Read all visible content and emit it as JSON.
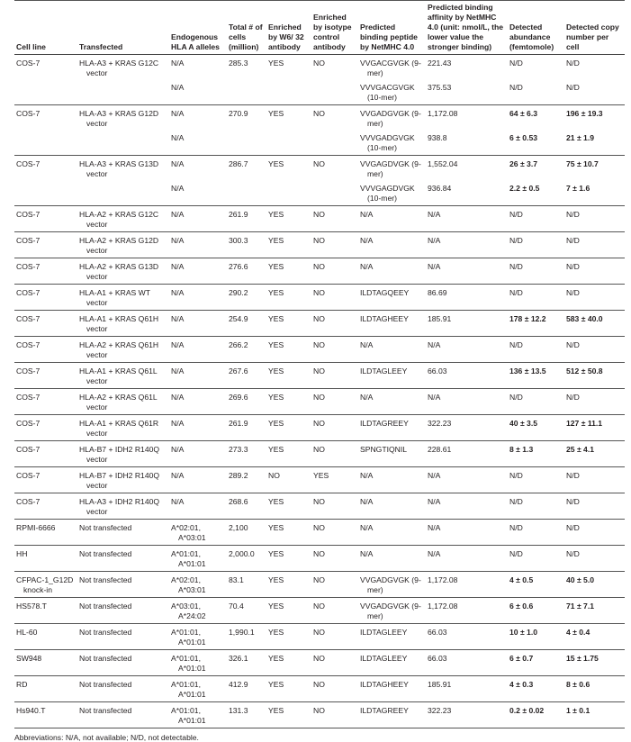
{
  "headers": [
    "Cell line",
    "Transfected",
    "Endogenous HLA A alleles",
    "Total # of cells (million)",
    "Enriched by W6/ 32 antibody",
    "Enriched by isotype control antibody",
    "Predicted binding peptide by NetMHC 4.0",
    "Predicted binding affinity by NetMHC 4.0 (unit: nmol/L, the lower value the stronger binding)",
    "Detected abundance (femtomole)",
    "Detected copy number per cell"
  ],
  "rows": [
    {
      "cell": "COS-7",
      "transfected": "HLA-A3 + KRAS G12C vector",
      "total": "285.3",
      "w6": "YES",
      "iso": "NO",
      "subs": [
        {
          "hla": "N/A",
          "peptide": "VVGACGVGK (9-mer)",
          "affinity": "221.43",
          "abundance": "N/D",
          "copy": "N/D"
        },
        {
          "hla": "N/A",
          "peptide": "VVVGACGVGK (10-mer)",
          "affinity": "375.53",
          "abundance": "N/D",
          "copy": "N/D"
        }
      ]
    },
    {
      "cell": "COS-7",
      "transfected": "HLA-A3 + KRAS G12D vector",
      "total": "270.9",
      "w6": "YES",
      "iso": "NO",
      "subs": [
        {
          "hla": "N/A",
          "peptide": "VVGADGVGK (9-mer)",
          "affinity": "1,172.08",
          "abundance": "64 ± 6.3",
          "copy": "196 ± 19.3"
        },
        {
          "hla": "N/A",
          "peptide": "VVVGADGVGK (10-mer)",
          "affinity": "938.8",
          "abundance": "6 ± 0.53",
          "copy": "21 ± 1.9"
        }
      ]
    },
    {
      "cell": "COS-7",
      "transfected": "HLA-A3 + KRAS G13D vector",
      "total": "286.7",
      "w6": "YES",
      "iso": "NO",
      "subs": [
        {
          "hla": "N/A",
          "peptide": "VVGAGDVGK (9-mer)",
          "affinity": "1,552.04",
          "abundance": "26 ± 3.7",
          "copy": "75 ± 10.7"
        },
        {
          "hla": "N/A",
          "peptide": "VVVGAGDVGK (10-mer)",
          "affinity": "936.84",
          "abundance": "2.2 ± 0.5",
          "copy": "7 ± 1.6"
        }
      ]
    },
    {
      "cell": "COS-7",
      "transfected": "HLA-A2 + KRAS G12C vector",
      "total": "261.9",
      "w6": "YES",
      "iso": "NO",
      "subs": [
        {
          "hla": "N/A",
          "peptide": "N/A",
          "affinity": "N/A",
          "abundance": "N/D",
          "copy": "N/D"
        }
      ]
    },
    {
      "cell": "COS-7",
      "transfected": "HLA-A2 + KRAS G12D vector",
      "total": "300.3",
      "w6": "YES",
      "iso": "NO",
      "subs": [
        {
          "hla": "N/A",
          "peptide": "N/A",
          "affinity": "N/A",
          "abundance": "N/D",
          "copy": "N/D"
        }
      ]
    },
    {
      "cell": "COS-7",
      "transfected": "HLA-A2 + KRAS G13D vector",
      "total": "276.6",
      "w6": "YES",
      "iso": "NO",
      "subs": [
        {
          "hla": "N/A",
          "peptide": "N/A",
          "affinity": "N/A",
          "abundance": "N/D",
          "copy": "N/D"
        }
      ]
    },
    {
      "cell": "COS-7",
      "transfected": "HLA-A1 + KRAS WT vector",
      "total": "290.2",
      "w6": "YES",
      "iso": "NO",
      "subs": [
        {
          "hla": "N/A",
          "peptide": "ILDTAGQEEY",
          "affinity": "86.69",
          "abundance": "N/D",
          "copy": "N/D"
        }
      ]
    },
    {
      "cell": "COS-7",
      "transfected": "HLA-A1 + KRAS Q61H vector",
      "total": "254.9",
      "w6": "YES",
      "iso": "NO",
      "subs": [
        {
          "hla": "N/A",
          "peptide": "ILDTAGHEEY",
          "affinity": "185.91",
          "abundance": "178 ± 12.2",
          "copy": "583 ± 40.0"
        }
      ]
    },
    {
      "cell": "COS-7",
      "transfected": "HLA-A2 + KRAS Q61H vector",
      "total": "266.2",
      "w6": "YES",
      "iso": "NO",
      "subs": [
        {
          "hla": "N/A",
          "peptide": "N/A",
          "affinity": "N/A",
          "abundance": "N/D",
          "copy": "N/D"
        }
      ]
    },
    {
      "cell": "COS-7",
      "transfected": "HLA-A1 + KRAS Q61L vector",
      "total": "267.6",
      "w6": "YES",
      "iso": "NO",
      "subs": [
        {
          "hla": "N/A",
          "peptide": "ILDTAGLEEY",
          "affinity": "66.03",
          "abundance": "136 ± 13.5",
          "copy": "512 ± 50.8"
        }
      ]
    },
    {
      "cell": "COS-7",
      "transfected": "HLA-A2 + KRAS Q61L vector",
      "total": "269.6",
      "w6": "YES",
      "iso": "NO",
      "subs": [
        {
          "hla": "N/A",
          "peptide": "N/A",
          "affinity": "N/A",
          "abundance": "N/D",
          "copy": "N/D"
        }
      ]
    },
    {
      "cell": "COS-7",
      "transfected": "HLA-A1 + KRAS Q61R vector",
      "total": "261.9",
      "w6": "YES",
      "iso": "NO",
      "subs": [
        {
          "hla": "N/A",
          "peptide": "ILDTAGREEY",
          "affinity": "322.23",
          "abundance": "40 ± 3.5",
          "copy": "127 ± 11.1"
        }
      ]
    },
    {
      "cell": "COS-7",
      "transfected": "HLA-B7 + IDH2 R140Q vector",
      "total": "273.3",
      "w6": "YES",
      "iso": "NO",
      "subs": [
        {
          "hla": "N/A",
          "peptide": "SPNGTIQNIL",
          "affinity": "228.61",
          "abundance": "8 ± 1.3",
          "copy": "25 ± 4.1"
        }
      ]
    },
    {
      "cell": "COS-7",
      "transfected": "HLA-B7 + IDH2 R140Q vector",
      "total": "289.2",
      "w6": "NO",
      "iso": "YES",
      "subs": [
        {
          "hla": "N/A",
          "peptide": "N/A",
          "affinity": "N/A",
          "abundance": "N/D",
          "copy": "N/D"
        }
      ]
    },
    {
      "cell": "COS-7",
      "transfected": "HLA-A3 + IDH2 R140Q vector",
      "total": "268.6",
      "w6": "YES",
      "iso": "NO",
      "subs": [
        {
          "hla": "N/A",
          "peptide": "N/A",
          "affinity": "N/A",
          "abundance": "N/D",
          "copy": "N/D"
        }
      ]
    },
    {
      "cell": "RPMI-6666",
      "transfected": "Not transfected",
      "total": "2,100",
      "w6": "YES",
      "iso": "NO",
      "subs": [
        {
          "hla": "A*02:01, A*03:01",
          "peptide": "N/A",
          "affinity": "N/A",
          "abundance": "N/D",
          "copy": "N/D"
        }
      ]
    },
    {
      "cell": "HH",
      "transfected": "Not transfected",
      "total": "2,000.0",
      "w6": "YES",
      "iso": "NO",
      "subs": [
        {
          "hla": "A*01:01, A*01:01",
          "peptide": "N/A",
          "affinity": "N/A",
          "abundance": "N/D",
          "copy": "N/D"
        }
      ]
    },
    {
      "cell": "CFPAC-1_G12D knock-in",
      "transfected": "Not transfected",
      "total": "83.1",
      "w6": "YES",
      "iso": "NO",
      "subs": [
        {
          "hla": "A*02:01, A*03:01",
          "peptide": "VVGADGVGK (9-mer)",
          "affinity": "1,172.08",
          "abundance": "4 ± 0.5",
          "copy": "40 ± 5.0"
        }
      ]
    },
    {
      "cell": "HS578.T",
      "transfected": "Not transfected",
      "total": "70.4",
      "w6": "YES",
      "iso": "NO",
      "subs": [
        {
          "hla": "A*03:01, A*24:02",
          "peptide": "VVGADGVGK (9-mer)",
          "affinity": "1,172.08",
          "abundance": "6 ± 0.6",
          "copy": "71 ± 7.1"
        }
      ]
    },
    {
      "cell": "HL-60",
      "transfected": "Not transfected",
      "total": "1,990.1",
      "w6": "YES",
      "iso": "NO",
      "subs": [
        {
          "hla": "A*01:01, A*01:01",
          "peptide": "ILDTAGLEEY",
          "affinity": "66.03",
          "abundance": "10 ± 1.0",
          "copy": "4 ± 0.4"
        }
      ]
    },
    {
      "cell": "SW948",
      "transfected": "Not transfected",
      "total": "326.1",
      "w6": "YES",
      "iso": "NO",
      "subs": [
        {
          "hla": "A*01:01, A*01:01",
          "peptide": "ILDTAGLEEY",
          "affinity": "66.03",
          "abundance": "6 ± 0.7",
          "copy": "15 ± 1.75"
        }
      ]
    },
    {
      "cell": "RD",
      "transfected": "Not transfected",
      "total": "412.9",
      "w6": "YES",
      "iso": "NO",
      "subs": [
        {
          "hla": "A*01:01, A*01:01",
          "peptide": "ILDTAGHEEY",
          "affinity": "185.91",
          "abundance": "4 ± 0.3",
          "copy": "8 ± 0.6"
        }
      ]
    },
    {
      "cell": "Hs940.T",
      "transfected": "Not transfected",
      "total": "131.3",
      "w6": "YES",
      "iso": "NO",
      "subs": [
        {
          "hla": "A*01:01, A*01:01",
          "peptide": "ILDTAGREEY",
          "affinity": "322.23",
          "abundance": "0.2 ± 0.02",
          "copy": "1 ± 0.1"
        }
      ]
    }
  ],
  "footnote": "Abbreviations: N/A, not available; N/D, not detectable."
}
